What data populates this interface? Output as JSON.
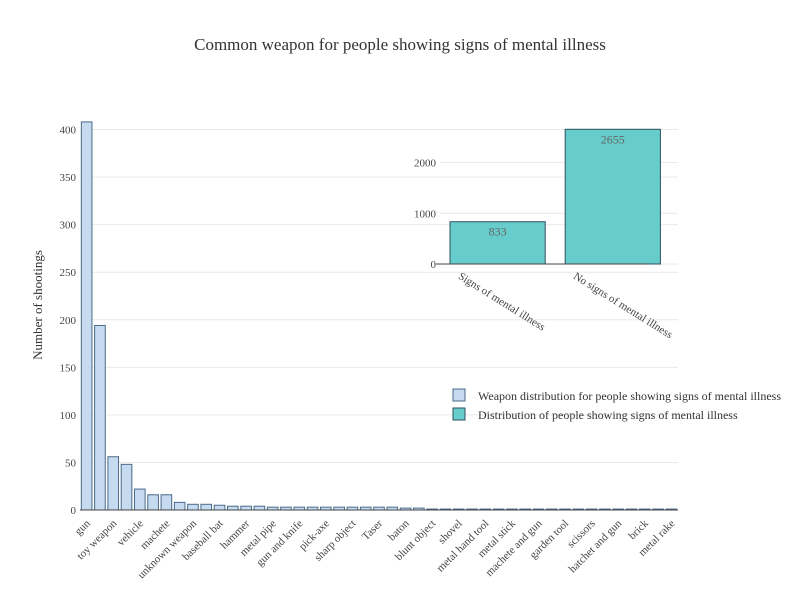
{
  "chart_data": [
    {
      "type": "bar",
      "title": "Common weapon for people showing signs of mental illness",
      "ylabel": "Number of shootings",
      "xlabel": "",
      "ylim": [
        0,
        410
      ],
      "yticks": [
        0,
        50,
        100,
        150,
        200,
        250,
        300,
        350,
        400
      ],
      "categories": [
        "gun",
        "toy weapon",
        "vehicle",
        "machete",
        "unknown weapon",
        "baseball bat",
        "hammer",
        "metal pipe",
        "gun and knife",
        "pick-axe",
        "sharp object",
        "Taser",
        "baton",
        "blunt object",
        "shovel",
        "metal hand tool",
        "metal stick",
        "machete and gun",
        "garden tool",
        "scissors",
        "hatchet and gun",
        "brick",
        "metal rake"
      ],
      "bars": [
        {
          "label": "gun",
          "value": 408
        },
        {
          "label": "",
          "value": 194
        },
        {
          "label": "toy weapon",
          "value": 56
        },
        {
          "label": "",
          "value": 48
        },
        {
          "label": "vehicle",
          "value": 22
        },
        {
          "label": "",
          "value": 16
        },
        {
          "label": "machete",
          "value": 16
        },
        {
          "label": "",
          "value": 8
        },
        {
          "label": "unknown weapon",
          "value": 6
        },
        {
          "label": "",
          "value": 6
        },
        {
          "label": "baseball bat",
          "value": 5
        },
        {
          "label": "",
          "value": 4
        },
        {
          "label": "hammer",
          "value": 4
        },
        {
          "label": "",
          "value": 4
        },
        {
          "label": "metal pipe",
          "value": 3
        },
        {
          "label": "",
          "value": 3
        },
        {
          "label": "gun and knife",
          "value": 3
        },
        {
          "label": "",
          "value": 3
        },
        {
          "label": "pick-axe",
          "value": 3
        },
        {
          "label": "",
          "value": 3
        },
        {
          "label": "sharp object",
          "value": 3
        },
        {
          "label": "",
          "value": 3
        },
        {
          "label": "Taser",
          "value": 3
        },
        {
          "label": "",
          "value": 3
        },
        {
          "label": "baton",
          "value": 2
        },
        {
          "label": "",
          "value": 2
        },
        {
          "label": "blunt object",
          "value": 1
        },
        {
          "label": "",
          "value": 1
        },
        {
          "label": "shovel",
          "value": 1
        },
        {
          "label": "",
          "value": 1
        },
        {
          "label": "metal hand tool",
          "value": 1
        },
        {
          "label": "",
          "value": 1
        },
        {
          "label": "metal stick",
          "value": 1
        },
        {
          "label": "",
          "value": 1
        },
        {
          "label": "machete and gun",
          "value": 1
        },
        {
          "label": "",
          "value": 1
        },
        {
          "label": "garden tool",
          "value": 1
        },
        {
          "label": "",
          "value": 1
        },
        {
          "label": "scissors",
          "value": 1
        },
        {
          "label": "",
          "value": 1
        },
        {
          "label": "hatchet and gun",
          "value": 1
        },
        {
          "label": "",
          "value": 1
        },
        {
          "label": "brick",
          "value": 1
        },
        {
          "label": "",
          "value": 1
        },
        {
          "label": "metal rake",
          "value": 1
        }
      ],
      "series_name": "Weapon distribution for people showing signs of mental illness",
      "color": "#c6dbef",
      "grid": true
    },
    {
      "type": "bar",
      "categories": [
        "Signs of mental illness",
        "No signs of mental illness"
      ],
      "values": [
        833,
        2655
      ],
      "data_labels": [
        "833",
        "2655"
      ],
      "ylim": [
        0,
        2700
      ],
      "yticks": [
        0,
        1000,
        2000
      ],
      "series_name": "Distribution of people showing signs of mental illness",
      "color": "#66cccc",
      "grid": true
    }
  ],
  "legend": {
    "placement": "right",
    "entries": [
      {
        "label": "Weapon distribution for people showing signs of mental illness",
        "color": "#c6dbef"
      },
      {
        "label": "Distribution of people showing signs of mental illness",
        "color": "#66cccc"
      }
    ]
  }
}
